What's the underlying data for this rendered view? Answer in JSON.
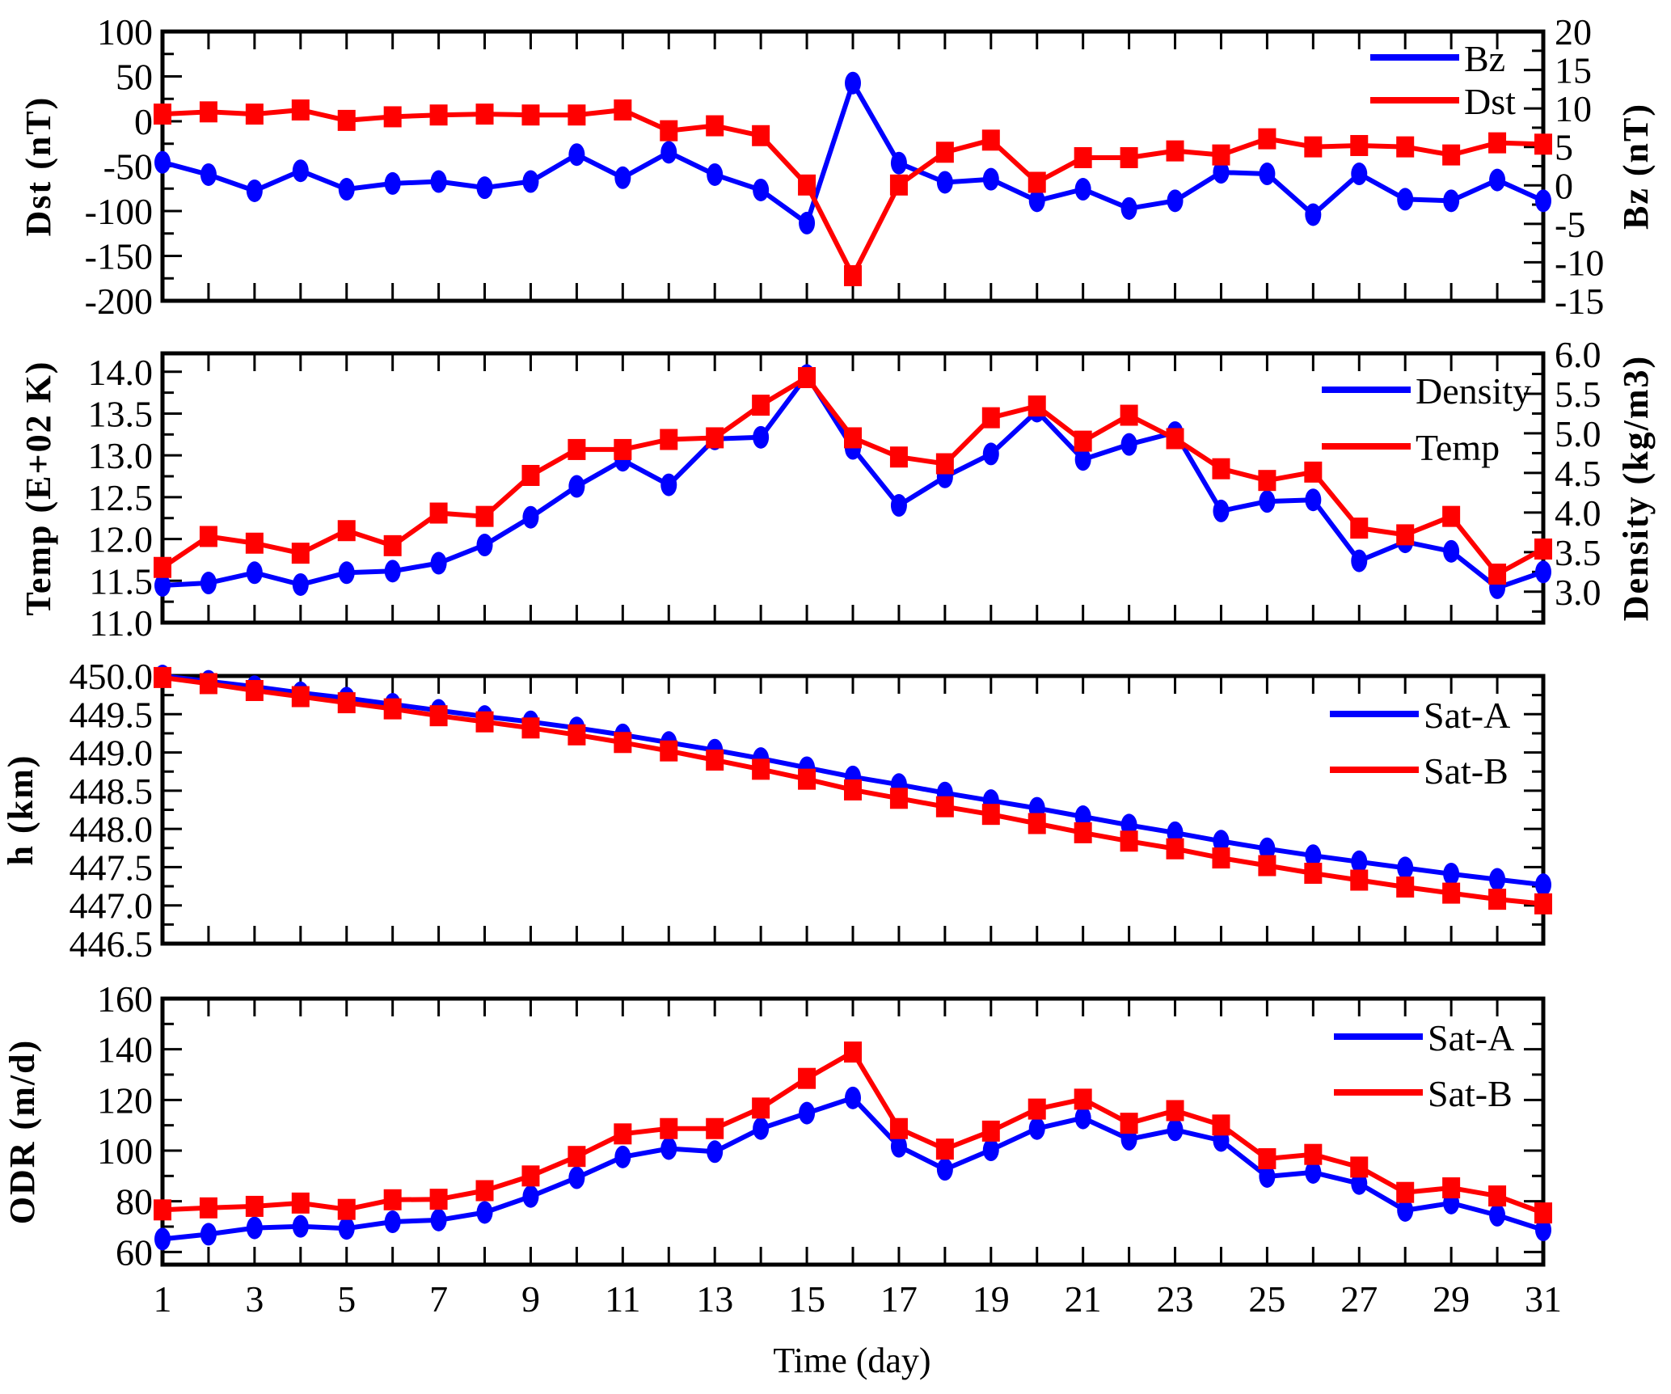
{
  "chart_data": [
    {
      "type": "line",
      "panel": "top",
      "x": [
        1,
        2,
        3,
        4,
        5,
        6,
        7,
        8,
        9,
        10,
        11,
        12,
        13,
        14,
        15,
        16,
        17,
        18,
        19,
        20,
        21,
        22,
        23,
        24,
        25,
        26,
        27,
        28,
        29,
        30,
        31
      ],
      "ylabel": "Dst (nT)",
      "ylabel_right": "Bz (nT)",
      "ylim": [
        -200,
        100
      ],
      "ylim_right": [
        -15,
        20
      ],
      "yticks": [
        "100",
        "50",
        "0",
        "-50",
        "-100",
        "-150",
        "-200"
      ],
      "yticks_values": [
        100,
        50,
        0,
        -50,
        -100,
        -150,
        -200
      ],
      "yticks_right": [
        "20",
        "15",
        "10",
        "5",
        "0",
        "-5",
        "-10",
        "-15"
      ],
      "yticks_right_values": [
        20,
        15,
        10,
        5,
        0,
        -5,
        -10,
        -15
      ],
      "legend_position": "top-right",
      "series": [
        {
          "name": "Bz",
          "axis": "right",
          "color": "#0000ff",
          "marker": "circle",
          "values": [
            3.0,
            1.4,
            -0.7,
            1.9,
            -0.5,
            0.25,
            0.5,
            -0.3,
            0.5,
            4.0,
            1.0,
            4.3,
            1.4,
            -0.6,
            -4.9,
            13.3,
            2.9,
            0.4,
            0.8,
            -2.0,
            -0.5,
            -3.0,
            -2.0,
            1.7,
            1.5,
            -3.8,
            1.5,
            -1.8,
            -2.0,
            0.7,
            -2.0
          ]
        },
        {
          "name": "Dst",
          "axis": "left",
          "color": "#ff0000",
          "marker": "square",
          "values": [
            8,
            10.5,
            8,
            12.6,
            1,
            5,
            7,
            8,
            7,
            7,
            12.6,
            -10.5,
            -5,
            -16,
            -71,
            -172,
            -71,
            -34.5,
            -21,
            -68,
            -40.5,
            -40.5,
            -33,
            -37.5,
            -19.5,
            -28.5,
            -27,
            -28.5,
            -37.5,
            -24,
            -25.5
          ]
        }
      ]
    },
    {
      "type": "line",
      "panel": "second",
      "x": [
        1,
        2,
        3,
        4,
        5,
        6,
        7,
        8,
        9,
        10,
        11,
        12,
        13,
        14,
        15,
        16,
        17,
        18,
        19,
        20,
        21,
        22,
        23,
        24,
        25,
        26,
        27,
        28,
        29,
        30,
        31
      ],
      "ylabel": "Temp (E+02 K)",
      "ylabel_right": "Density (kg/m3)",
      "ylim": [
        11.0,
        14.22
      ],
      "ylim_right": [
        2.61,
        6.01
      ],
      "yticks": [
        "14.0",
        "13.5",
        "13.0",
        "12.5",
        "12.0",
        "11.5",
        "11.0"
      ],
      "yticks_values": [
        14.0,
        13.5,
        13.0,
        12.5,
        12.0,
        11.5,
        11.0
      ],
      "yticks_right": [
        "6.0",
        "5.5",
        "5.0",
        "4.5",
        "4.0",
        "3.5",
        "3.0"
      ],
      "yticks_right_values": [
        6.0,
        5.5,
        5.0,
        4.5,
        4.0,
        3.5,
        3.0
      ],
      "legend_position": "top-right",
      "series": [
        {
          "name": "Density",
          "axis": "right",
          "color": "#0000ff",
          "marker": "circle",
          "values": [
            3.08,
            3.11,
            3.24,
            3.09,
            3.24,
            3.26,
            3.36,
            3.59,
            3.94,
            4.33,
            4.66,
            4.35,
            4.93,
            4.95,
            5.73,
            4.81,
            4.09,
            4.45,
            4.74,
            5.28,
            4.67,
            4.86,
            5.01,
            4.02,
            4.14,
            4.16,
            3.39,
            3.63,
            3.51,
            3.05,
            3.25
          ]
        },
        {
          "name": "Temp",
          "axis": "left",
          "color": "#ff0000",
          "marker": "square",
          "values": [
            11.66,
            12.03,
            11.95,
            11.83,
            12.1,
            11.92,
            12.31,
            12.27,
            12.76,
            13.07,
            13.07,
            13.19,
            13.21,
            13.6,
            13.93,
            13.21,
            12.98,
            12.9,
            13.45,
            13.59,
            13.17,
            13.48,
            13.2,
            12.84,
            12.7,
            12.8,
            12.13,
            12.05,
            12.27,
            11.58,
            11.88
          ]
        }
      ]
    },
    {
      "type": "line",
      "panel": "third",
      "x": [
        1,
        2,
        3,
        4,
        5,
        6,
        7,
        8,
        9,
        10,
        11,
        12,
        13,
        14,
        15,
        16,
        17,
        18,
        19,
        20,
        21,
        22,
        23,
        24,
        25,
        26,
        27,
        28,
        29,
        30,
        31
      ],
      "ylabel": "h (km)",
      "ylim": [
        446.5,
        450.0
      ],
      "yticks": [
        "450.0",
        "449.5",
        "449.0",
        "448.5",
        "448.0",
        "447.5",
        "447.0",
        "446.5"
      ],
      "yticks_values": [
        450.0,
        449.5,
        449.0,
        448.5,
        448.0,
        447.5,
        447.0,
        446.5
      ],
      "legend_position": "top-right",
      "series": [
        {
          "name": "Sat-A",
          "axis": "left",
          "color": "#0000ff",
          "marker": "circle",
          "values": [
            450.0,
            449.93,
            449.86,
            449.78,
            449.71,
            449.63,
            449.55,
            449.47,
            449.4,
            449.32,
            449.23,
            449.13,
            449.03,
            448.92,
            448.8,
            448.68,
            448.58,
            448.47,
            448.37,
            448.27,
            448.16,
            448.05,
            447.95,
            447.84,
            447.74,
            447.65,
            447.57,
            447.49,
            447.41,
            447.34,
            447.27
          ]
        },
        {
          "name": "Sat-B",
          "axis": "left",
          "color": "#ff0000",
          "marker": "square",
          "values": [
            449.98,
            449.9,
            449.81,
            449.73,
            449.65,
            449.57,
            449.48,
            449.4,
            449.32,
            449.23,
            449.13,
            449.02,
            448.9,
            448.78,
            448.65,
            448.51,
            448.4,
            448.29,
            448.19,
            448.07,
            447.95,
            447.84,
            447.74,
            447.62,
            447.52,
            447.42,
            447.33,
            447.24,
            447.16,
            447.08,
            447.02
          ]
        }
      ]
    },
    {
      "type": "line",
      "panel": "bottom",
      "x": [
        1,
        2,
        3,
        4,
        5,
        6,
        7,
        8,
        9,
        10,
        11,
        12,
        13,
        14,
        15,
        16,
        17,
        18,
        19,
        20,
        21,
        22,
        23,
        24,
        25,
        26,
        27,
        28,
        29,
        30,
        31
      ],
      "xlabel": "Time (day)",
      "xticks": [
        "1",
        "3",
        "5",
        "7",
        "9",
        "11",
        "13",
        "15",
        "17",
        "19",
        "21",
        "23",
        "25",
        "27",
        "29",
        "31"
      ],
      "xticks_values": [
        1,
        3,
        5,
        7,
        9,
        11,
        13,
        15,
        17,
        19,
        21,
        23,
        25,
        27,
        29,
        31
      ],
      "xlim": [
        1,
        31
      ],
      "ylabel": "ODR (m/d)",
      "ylim": [
        55,
        160
      ],
      "yticks": [
        "160",
        "140",
        "120",
        "100",
        "80",
        "60"
      ],
      "yticks_values": [
        160,
        140,
        120,
        100,
        80,
        60
      ],
      "legend_position": "top-right",
      "series": [
        {
          "name": "Sat-A",
          "axis": "left",
          "color": "#0000ff",
          "marker": "circle",
          "values": [
            65.1,
            67.0,
            69.5,
            70.1,
            69.3,
            71.9,
            72.6,
            75.6,
            81.9,
            89.3,
            97.5,
            100.8,
            99.6,
            108.7,
            114.8,
            120.8,
            101.7,
            92.6,
            100.3,
            108.7,
            112.9,
            104.5,
            108.2,
            104.0,
            89.8,
            91.4,
            87.0,
            76.4,
            79.3,
            74.5,
            68.7
          ]
        },
        {
          "name": "Sat-B",
          "axis": "left",
          "color": "#ff0000",
          "marker": "square",
          "values": [
            76.6,
            77.4,
            78.0,
            79.3,
            76.8,
            80.6,
            80.8,
            84.2,
            90.0,
            97.7,
            106.6,
            108.7,
            108.7,
            116.8,
            128.5,
            138.9,
            108.7,
            100.6,
            107.7,
            116.4,
            120.3,
            110.8,
            115.8,
            110.1,
            96.8,
            98.5,
            93.5,
            83.5,
            85.3,
            82.1,
            75.4
          ]
        }
      ]
    }
  ]
}
